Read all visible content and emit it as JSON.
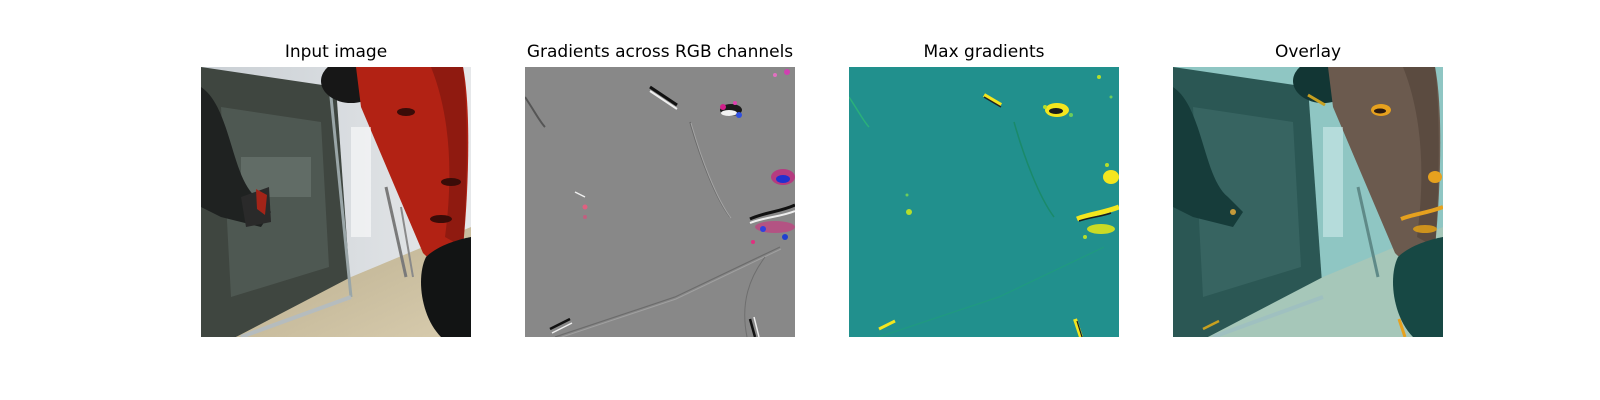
{
  "panels": [
    {
      "title": "Input image"
    },
    {
      "title": "Gradients across RGB channels"
    },
    {
      "title": "Max gradients"
    },
    {
      "title": "Overlay"
    }
  ],
  "colors": {
    "robot_red": "#b22214",
    "background_teal": "#21908d",
    "gradient_gray": "#888888",
    "highlight_yellow": "#f4e61e",
    "overlay_tint": "#2a8f8c"
  }
}
